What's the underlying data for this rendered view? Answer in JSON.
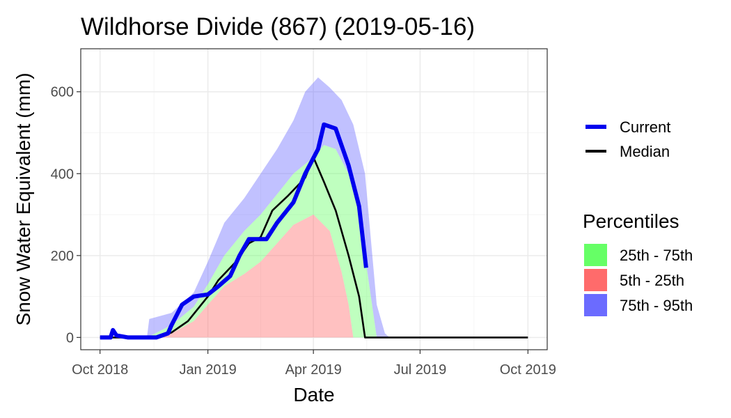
{
  "chart_data": {
    "type": "area",
    "title": "Wildhorse Divide (867) (2019-05-16)",
    "xlabel": "Date",
    "ylabel": "Snow Water Equivalent (mm)",
    "x_range": [
      "2018-10-01",
      "2019-10-01"
    ],
    "ylim": [
      -30,
      705
    ],
    "x_ticks": [
      {
        "date": "2018-10-01",
        "label": "Oct 2018"
      },
      {
        "date": "2019-01-01",
        "label": "Jan 2019"
      },
      {
        "date": "2019-04-01",
        "label": "Apr 2019"
      },
      {
        "date": "2019-07-01",
        "label": "Jul 2019"
      },
      {
        "date": "2019-10-01",
        "label": "Oct 2019"
      }
    ],
    "y_ticks": [
      0,
      200,
      400,
      600
    ],
    "grid": true,
    "bands": [
      {
        "name": "75th - 95th",
        "color": "#6b6bff",
        "upper": [
          [
            "2018-10-01",
            0
          ],
          [
            "2018-11-10",
            0
          ],
          [
            "2018-11-12",
            45
          ],
          [
            "2018-12-01",
            60
          ],
          [
            "2018-12-20",
            110
          ],
          [
            "2019-01-01",
            185
          ],
          [
            "2019-01-15",
            280
          ],
          [
            "2019-02-01",
            340
          ],
          [
            "2019-02-15",
            400
          ],
          [
            "2019-03-01",
            460
          ],
          [
            "2019-03-15",
            530
          ],
          [
            "2019-03-25",
            600
          ],
          [
            "2019-04-05",
            635
          ],
          [
            "2019-04-15",
            610
          ],
          [
            "2019-04-25",
            580
          ],
          [
            "2019-05-05",
            520
          ],
          [
            "2019-05-15",
            400
          ],
          [
            "2019-05-25",
            80
          ],
          [
            "2019-06-01",
            10
          ],
          [
            "2019-06-05",
            0
          ],
          [
            "2019-10-01",
            0
          ]
        ],
        "lower": [
          [
            "2018-10-01",
            0
          ],
          [
            "2018-11-10",
            0
          ],
          [
            "2018-12-01",
            30
          ],
          [
            "2018-12-20",
            75
          ],
          [
            "2019-01-01",
            130
          ],
          [
            "2019-01-15",
            200
          ],
          [
            "2019-02-01",
            260
          ],
          [
            "2019-02-15",
            300
          ],
          [
            "2019-03-01",
            350
          ],
          [
            "2019-03-15",
            400
          ],
          [
            "2019-04-01",
            440
          ],
          [
            "2019-04-10",
            470
          ],
          [
            "2019-04-20",
            460
          ],
          [
            "2019-05-01",
            400
          ],
          [
            "2019-05-10",
            300
          ],
          [
            "2019-05-20",
            100
          ],
          [
            "2019-05-25",
            0
          ],
          [
            "2019-10-01",
            0
          ]
        ]
      },
      {
        "name": "25th - 75th",
        "color": "#66ff66",
        "upper": [
          [
            "2018-10-01",
            0
          ],
          [
            "2018-11-10",
            0
          ],
          [
            "2018-12-01",
            30
          ],
          [
            "2018-12-20",
            75
          ],
          [
            "2019-01-01",
            130
          ],
          [
            "2019-01-15",
            200
          ],
          [
            "2019-02-01",
            260
          ],
          [
            "2019-02-15",
            300
          ],
          [
            "2019-03-01",
            350
          ],
          [
            "2019-03-15",
            400
          ],
          [
            "2019-04-01",
            440
          ],
          [
            "2019-04-10",
            470
          ],
          [
            "2019-04-20",
            460
          ],
          [
            "2019-05-01",
            400
          ],
          [
            "2019-05-10",
            300
          ],
          [
            "2019-05-20",
            100
          ],
          [
            "2019-05-25",
            0
          ],
          [
            "2019-10-01",
            0
          ]
        ],
        "lower": [
          [
            "2018-10-01",
            0
          ],
          [
            "2018-11-15",
            0
          ],
          [
            "2018-12-01",
            10
          ],
          [
            "2018-12-20",
            40
          ],
          [
            "2019-01-01",
            80
          ],
          [
            "2019-01-15",
            125
          ],
          [
            "2019-02-01",
            155
          ],
          [
            "2019-02-15",
            185
          ],
          [
            "2019-03-01",
            230
          ],
          [
            "2019-03-15",
            275
          ],
          [
            "2019-04-01",
            300
          ],
          [
            "2019-04-15",
            260
          ],
          [
            "2019-04-25",
            160
          ],
          [
            "2019-05-01",
            80
          ],
          [
            "2019-05-05",
            0
          ],
          [
            "2019-10-01",
            0
          ]
        ]
      },
      {
        "name": "5th - 25th",
        "color": "#ff6b6b",
        "upper": [
          [
            "2018-10-01",
            0
          ],
          [
            "2018-11-15",
            0
          ],
          [
            "2018-12-01",
            10
          ],
          [
            "2018-12-20",
            40
          ],
          [
            "2019-01-01",
            80
          ],
          [
            "2019-01-15",
            125
          ],
          [
            "2019-02-01",
            155
          ],
          [
            "2019-02-15",
            185
          ],
          [
            "2019-03-01",
            230
          ],
          [
            "2019-03-15",
            275
          ],
          [
            "2019-04-01",
            300
          ],
          [
            "2019-04-15",
            260
          ],
          [
            "2019-04-25",
            160
          ],
          [
            "2019-05-01",
            80
          ],
          [
            "2019-05-05",
            0
          ],
          [
            "2019-10-01",
            0
          ]
        ],
        "lower": [
          [
            "2018-10-01",
            0
          ],
          [
            "2019-10-01",
            0
          ]
        ]
      }
    ],
    "series": [
      {
        "name": "Median",
        "color": "#000000",
        "width": 2.6,
        "points": [
          [
            "2018-10-01",
            0
          ],
          [
            "2018-11-20",
            0
          ],
          [
            "2018-12-01",
            12
          ],
          [
            "2018-12-15",
            40
          ],
          [
            "2019-01-01",
            100
          ],
          [
            "2019-01-10",
            140
          ],
          [
            "2019-01-25",
            185
          ],
          [
            "2019-02-05",
            230
          ],
          [
            "2019-02-15",
            245
          ],
          [
            "2019-02-25",
            310
          ],
          [
            "2019-03-10",
            345
          ],
          [
            "2019-03-25",
            390
          ],
          [
            "2019-04-01",
            440
          ],
          [
            "2019-04-10",
            380
          ],
          [
            "2019-04-20",
            310
          ],
          [
            "2019-05-01",
            200
          ],
          [
            "2019-05-10",
            100
          ],
          [
            "2019-05-15",
            0
          ],
          [
            "2019-10-01",
            0
          ]
        ]
      },
      {
        "name": "Current",
        "color": "#0000ee",
        "width": 6,
        "points": [
          [
            "2018-10-01",
            0
          ],
          [
            "2018-10-10",
            0
          ],
          [
            "2018-10-12",
            18
          ],
          [
            "2018-10-15",
            5
          ],
          [
            "2018-10-25",
            0
          ],
          [
            "2018-11-18",
            0
          ],
          [
            "2018-11-28",
            10
          ],
          [
            "2018-12-01",
            30
          ],
          [
            "2018-12-10",
            80
          ],
          [
            "2018-12-20",
            100
          ],
          [
            "2019-01-01",
            105
          ],
          [
            "2019-01-10",
            125
          ],
          [
            "2019-01-20",
            150
          ],
          [
            "2019-01-28",
            200
          ],
          [
            "2019-02-05",
            240
          ],
          [
            "2019-02-20",
            240
          ],
          [
            "2019-03-01",
            280
          ],
          [
            "2019-03-15",
            330
          ],
          [
            "2019-03-25",
            400
          ],
          [
            "2019-04-05",
            460
          ],
          [
            "2019-04-10",
            520
          ],
          [
            "2019-04-20",
            510
          ],
          [
            "2019-05-01",
            420
          ],
          [
            "2019-05-10",
            320
          ],
          [
            "2019-05-16",
            170
          ]
        ]
      }
    ],
    "legend": {
      "placement": "right",
      "lines": [
        {
          "label": "Current",
          "color": "#0000ee"
        },
        {
          "label": "Median",
          "color": "#000000"
        }
      ],
      "percentiles_title": "Percentiles",
      "fills": [
        {
          "label": "25th - 75th",
          "color": "#66ff66"
        },
        {
          "label": "5th - 25th",
          "color": "#ff6b6b"
        },
        {
          "label": "75th - 95th",
          "color": "#6b6bff"
        }
      ]
    }
  }
}
